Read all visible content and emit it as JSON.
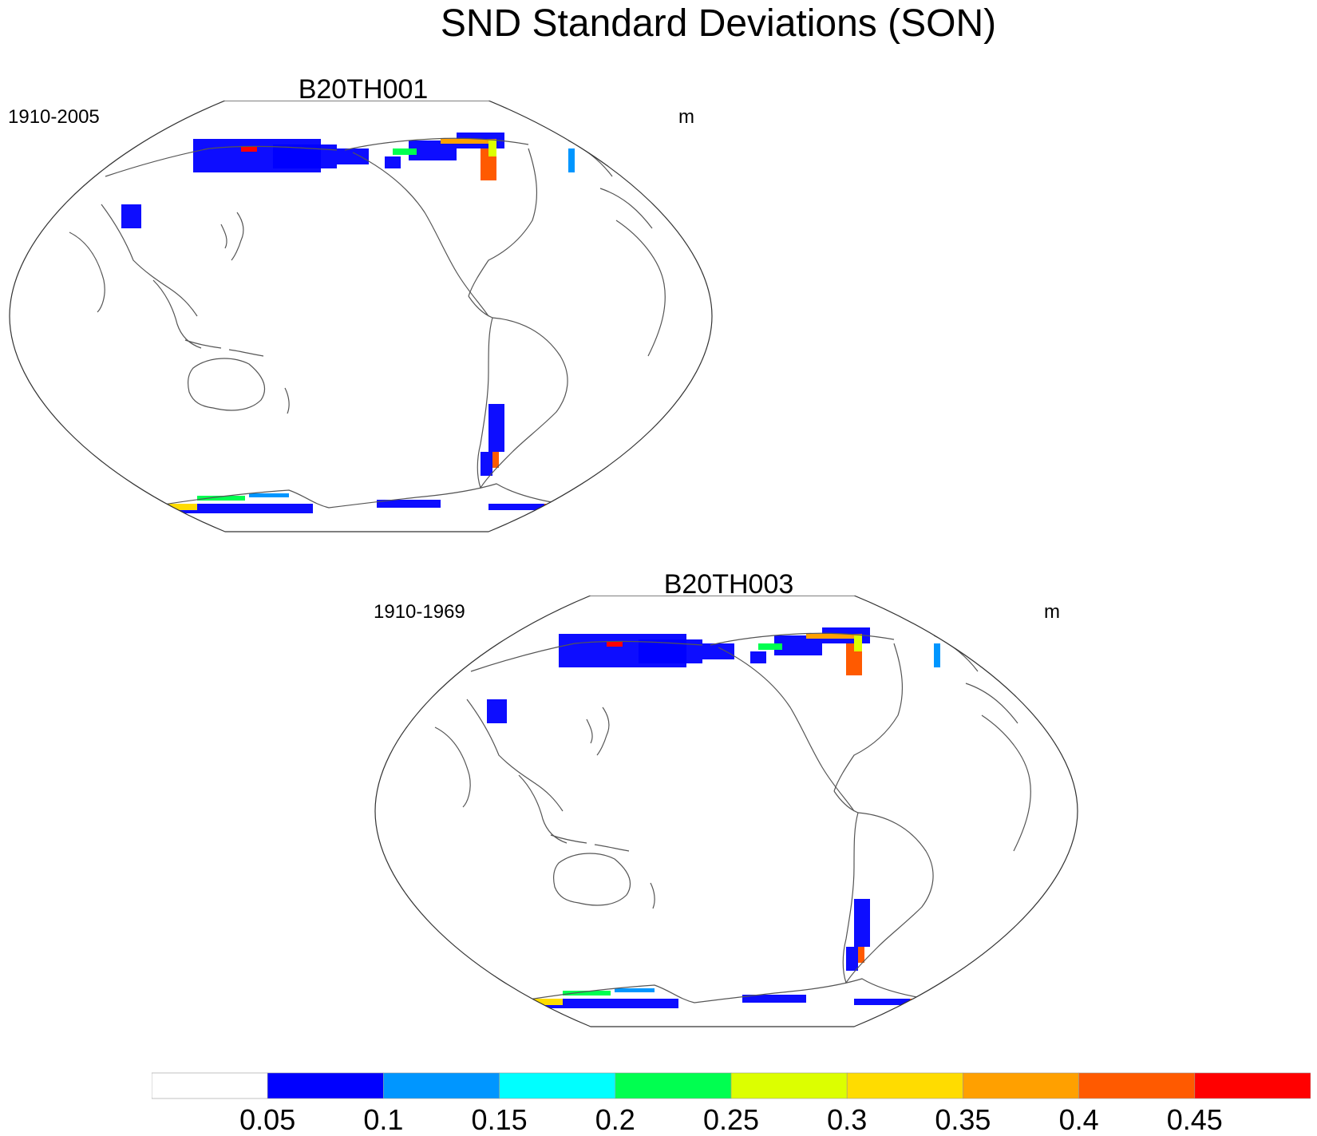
{
  "title": "SND Standard Deviations (SON)",
  "panels": [
    {
      "title": "B20TH001",
      "left_label": "1910-2005",
      "right_label": "m"
    },
    {
      "title": "B20TH003",
      "left_label": "1910-1969",
      "right_label": "m"
    }
  ],
  "colorbar": {
    "labels": [
      "0.05",
      "0.1",
      "0.15",
      "0.2",
      "0.25",
      "0.3",
      "0.35",
      "0.4",
      "0.45"
    ],
    "colors": [
      "#ffffff",
      "#0000ff",
      "#0096ff",
      "#00ffff",
      "#00ff50",
      "#dcff00",
      "#ffdc00",
      "#ffa000",
      "#ff5a00",
      "#ff0000"
    ]
  }
}
